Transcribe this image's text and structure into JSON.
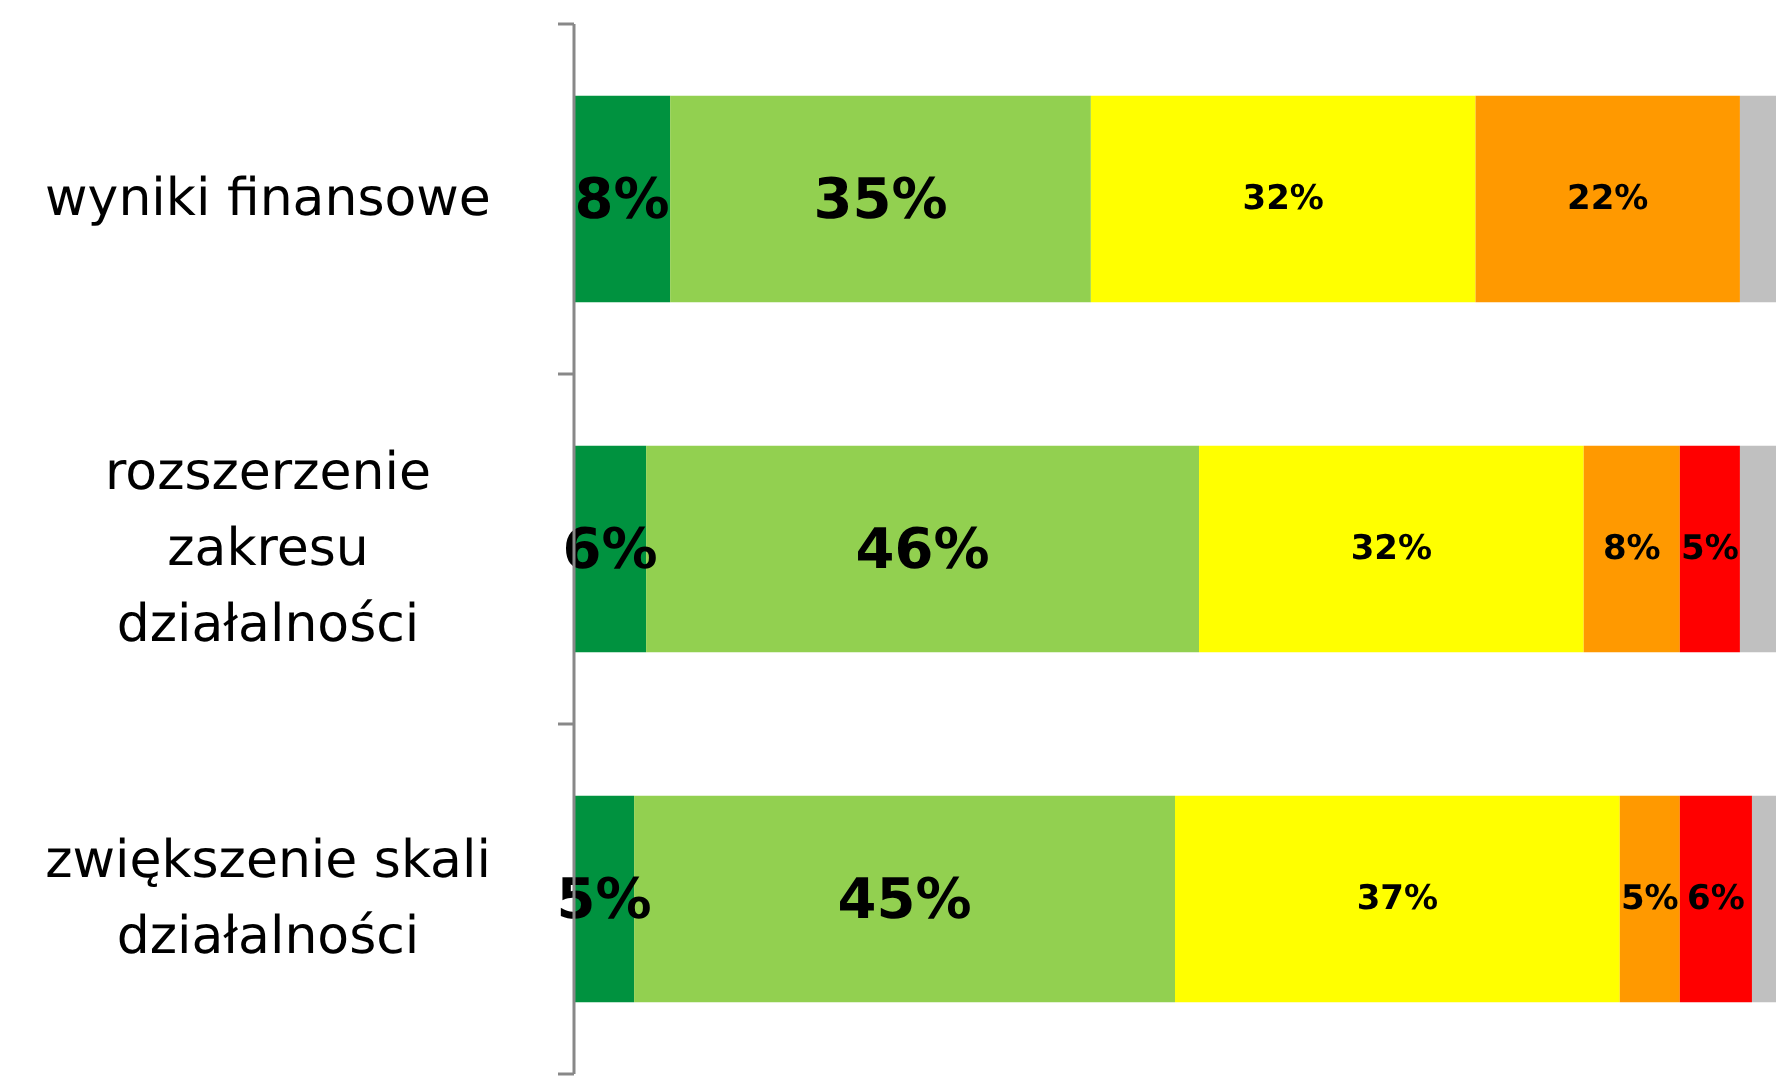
{
  "chart_data": {
    "type": "bar",
    "orientation": "horizontal",
    "stacked": true,
    "categories": [
      "wyniki finansowe",
      "rozszerzenie zakresu działalności",
      "zwiększenie skali działalności"
    ],
    "series": [
      {
        "color": "#00923f",
        "values": [
          8,
          6,
          5
        ],
        "value_labels": [
          "8%",
          "6%",
          "5%"
        ]
      },
      {
        "color": "#92d050",
        "values": [
          35,
          46,
          45
        ],
        "value_labels": [
          "35%",
          "46%",
          "45%"
        ]
      },
      {
        "color": "#ffff00",
        "values": [
          32,
          32,
          37
        ],
        "value_labels": [
          "32%",
          "32%",
          "37%"
        ]
      },
      {
        "color": "#ff9900",
        "values": [
          22,
          8,
          5
        ],
        "value_labels": [
          "22%",
          "8%",
          "5%"
        ]
      },
      {
        "color": "#ff0000",
        "values": [
          0,
          5,
          6
        ],
        "value_labels": [
          null,
          "5%",
          "6%"
        ]
      },
      {
        "color": "#c0c0c0",
        "values": [
          3,
          3,
          2
        ],
        "value_labels": [
          null,
          null,
          null
        ]
      }
    ]
  }
}
